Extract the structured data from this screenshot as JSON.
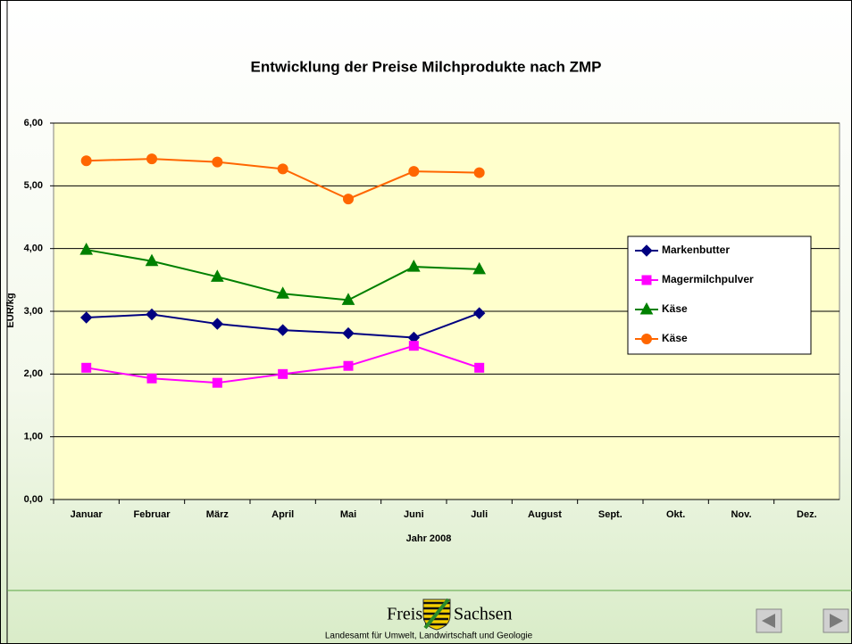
{
  "chart_data": {
    "type": "line",
    "title": "Entwicklung der Preise Milchprodukte nach ZMP",
    "x_label": "Jahr 2008",
    "y_label": "EUR/kg",
    "categories": [
      "Januar",
      "Februar",
      "März",
      "April",
      "Mai",
      "Juni",
      "Juli",
      "August",
      "Sept.",
      "Okt.",
      "Nov.",
      "Dez."
    ],
    "series": [
      {
        "name": "Markenbutter",
        "color": "#000080",
        "marker": "diamond",
        "values": [
          2.9,
          2.95,
          2.8,
          2.7,
          2.65,
          2.58,
          2.97,
          null,
          null,
          null,
          null,
          null
        ]
      },
      {
        "name": "Magermilchpulver",
        "color": "#ff00ff",
        "marker": "square",
        "values": [
          2.1,
          1.93,
          1.86,
          2.0,
          2.13,
          2.45,
          2.1,
          null,
          null,
          null,
          null,
          null
        ]
      },
      {
        "name": "Käse",
        "color": "#008000",
        "marker": "triangle",
        "values": [
          3.98,
          3.8,
          3.55,
          3.28,
          3.18,
          3.71,
          3.67,
          null,
          null,
          null,
          null,
          null
        ]
      },
      {
        "name": "Käse",
        "color": "#ff6600",
        "marker": "circle",
        "values": [
          5.4,
          5.43,
          5.38,
          5.27,
          4.79,
          5.23,
          5.21,
          null,
          null,
          null,
          null,
          null
        ]
      }
    ],
    "ylim": [
      0,
      6
    ],
    "yticks": [
      {
        "value": 0,
        "label": "0,00"
      },
      {
        "value": 1,
        "label": "1,00"
      },
      {
        "value": 2,
        "label": "2,00"
      },
      {
        "value": 3,
        "label": "3,00"
      },
      {
        "value": 4,
        "label": "4,00"
      },
      {
        "value": 5,
        "label": "5,00"
      },
      {
        "value": 6,
        "label": "6,00"
      }
    ],
    "grid": true,
    "legend": "right",
    "plot_background": "#ffffcc"
  },
  "footer": {
    "brand_left": "Freistaat",
    "brand_right": "Sachsen",
    "agency": "Landesamt für Umwelt, Landwirtschaft und Geologie"
  }
}
